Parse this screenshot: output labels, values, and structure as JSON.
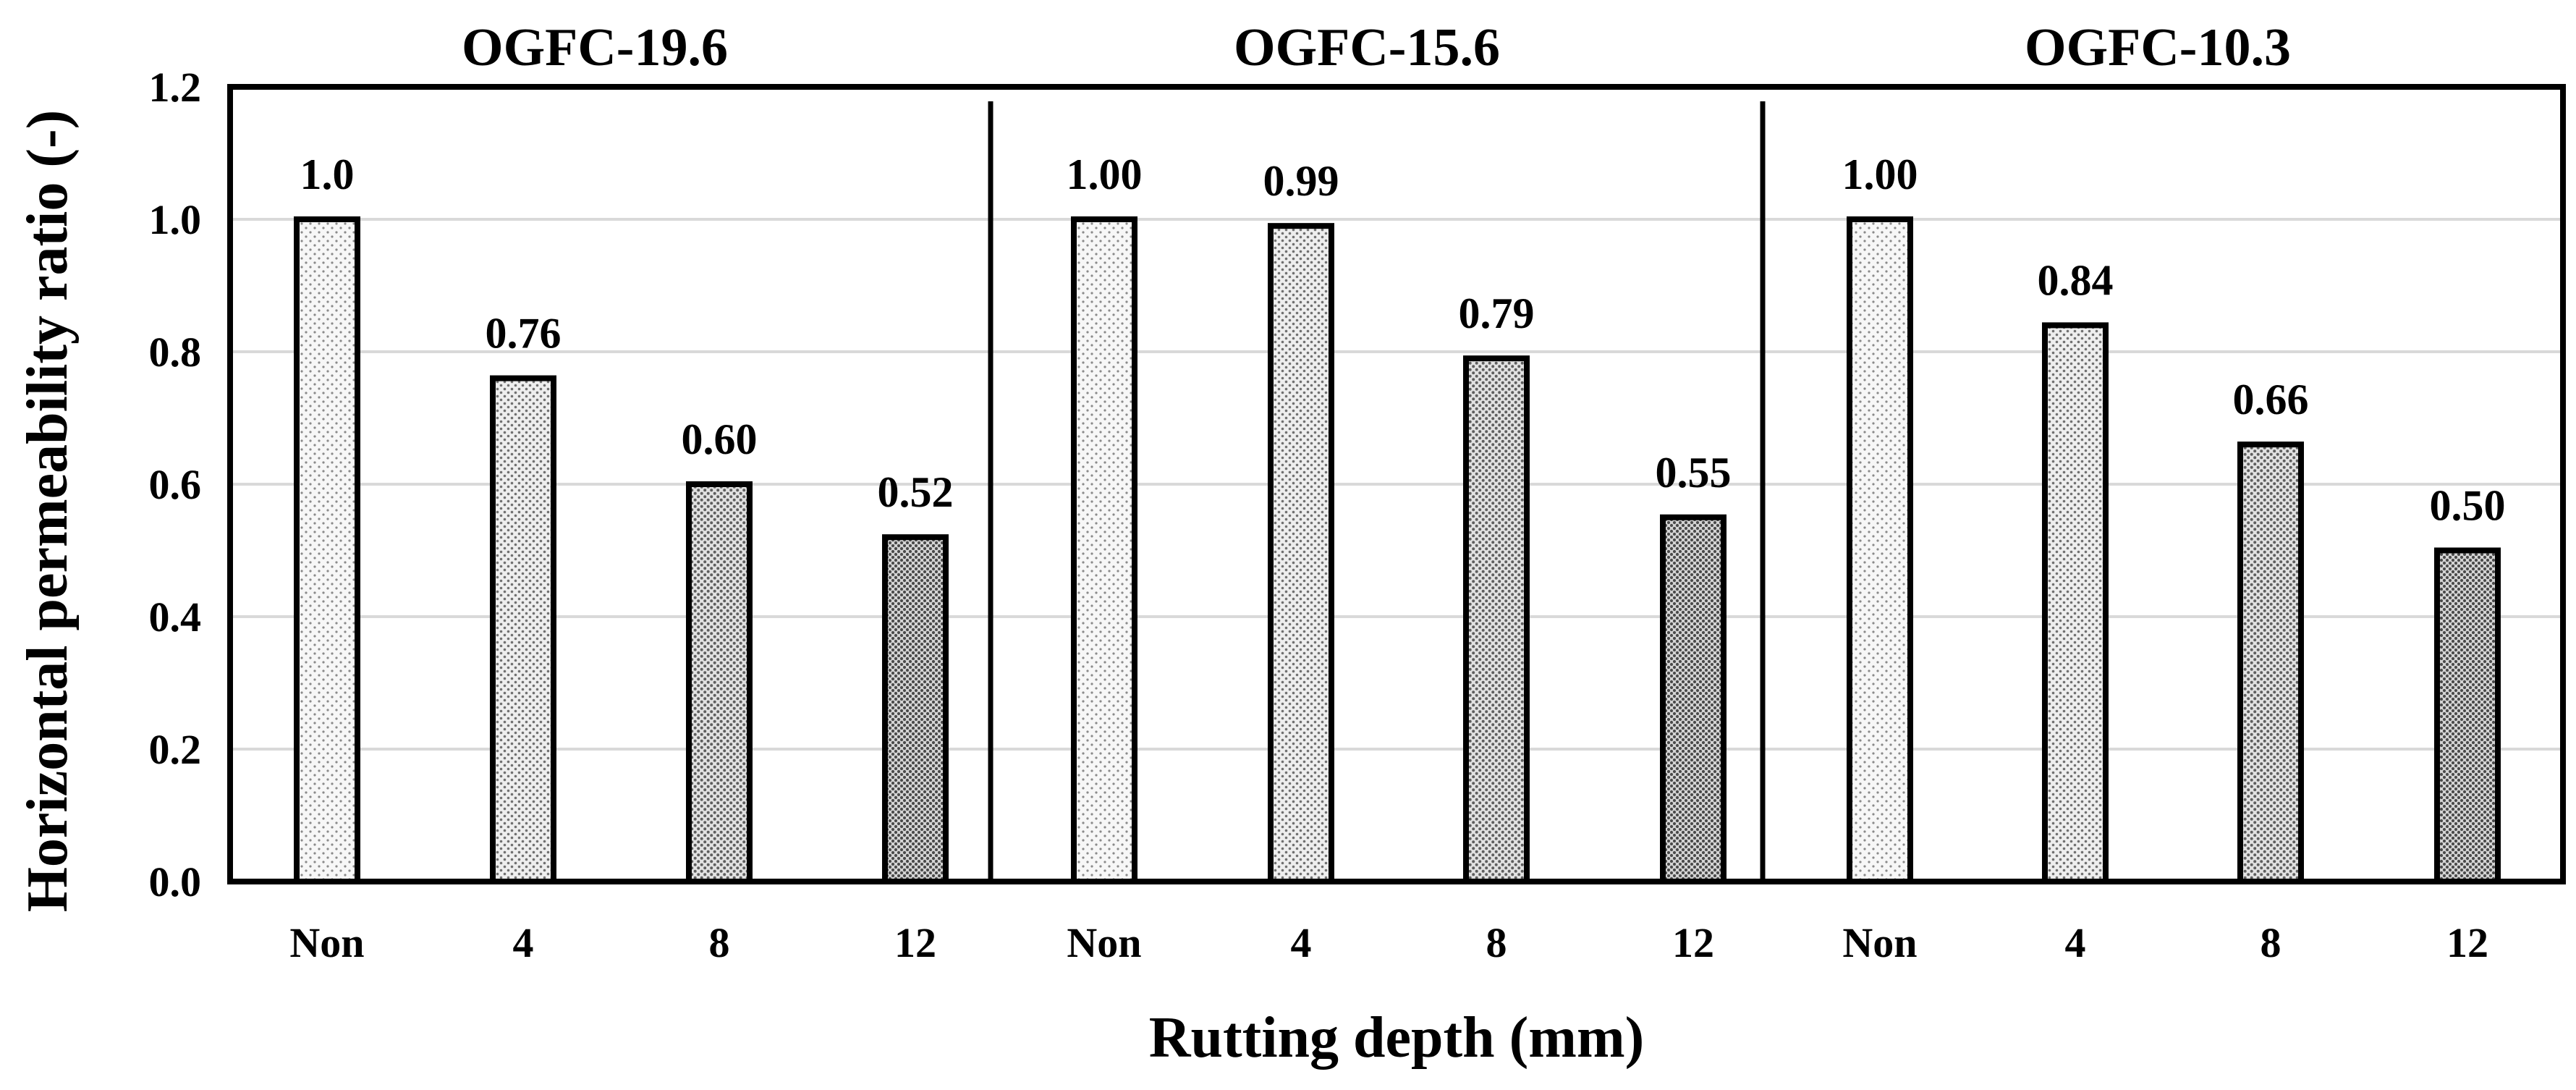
{
  "chart_data": {
    "type": "bar",
    "ylabel": "Horizontal permeability ratio (-)",
    "xlabel": "Rutting depth (mm)",
    "ylim": [
      0,
      1.2
    ],
    "yticks": [
      "0.0",
      "0.2",
      "0.4",
      "0.6",
      "0.8",
      "1.0",
      "1.2"
    ],
    "grid": true,
    "groups": [
      {
        "name": "OGFC-19.6",
        "categories": [
          "Non",
          "4",
          "8",
          "12"
        ],
        "values": [
          1.0,
          0.76,
          0.6,
          0.52
        ],
        "labels": [
          "1.0",
          "0.76",
          "0.60",
          "0.52"
        ]
      },
      {
        "name": "OGFC-15.6",
        "categories": [
          "Non",
          "4",
          "8",
          "12"
        ],
        "values": [
          1.0,
          0.99,
          0.79,
          0.55
        ],
        "labels": [
          "1.00",
          "0.99",
          "0.79",
          "0.55"
        ]
      },
      {
        "name": "OGFC-10.3",
        "categories": [
          "Non",
          "4",
          "8",
          "12"
        ],
        "values": [
          1.0,
          0.84,
          0.66,
          0.5
        ],
        "labels": [
          "1.00",
          "0.84",
          "0.66",
          "0.50"
        ]
      }
    ],
    "colors": {
      "bar_stroke": "#000000",
      "grid": "#d9d9d9",
      "pattern_bg": "#f4f4f4",
      "pattern_dot": "#5a5a5a"
    }
  }
}
